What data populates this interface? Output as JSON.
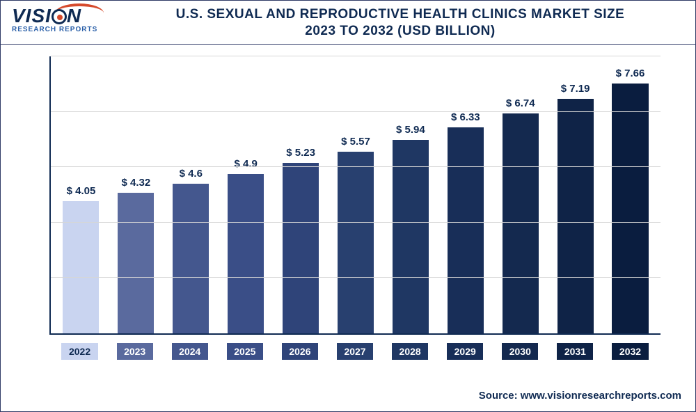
{
  "logo": {
    "main": "VISI",
    "main2": "N",
    "sub": "RESEARCH REPORTS"
  },
  "title_line1": "U.S. SEXUAL AND REPRODUCTIVE HEALTH CLINICS MARKET SIZE",
  "title_line2": "2023 TO 2032 (USD BILLION)",
  "source": "Source: www.visionresearchreports.com",
  "chart": {
    "type": "bar",
    "ylim": [
      0,
      8.5
    ],
    "gridlines": [
      1.7,
      3.4,
      5.1,
      6.8,
      8.5
    ],
    "background_color": "#ffffff",
    "grid_color": "#d6d6d6",
    "axis_color": "#0f2a52",
    "label_color": "#0f2a52",
    "label_fontsize": 15,
    "xlabel_fontsize": 14,
    "xlabel_color": "#ffffff",
    "bar_width_pct": 66,
    "currency_prefix": "$ ",
    "years": [
      "2022",
      "2023",
      "2024",
      "2025",
      "2026",
      "2027",
      "2028",
      "2029",
      "2030",
      "2031",
      "2032"
    ],
    "values": [
      4.05,
      4.32,
      4.6,
      4.9,
      5.23,
      5.57,
      5.94,
      6.33,
      6.74,
      7.19,
      7.66
    ],
    "value_labels": [
      "4.05",
      "4.32",
      "4.6",
      "4.9",
      "5.23",
      "5.57",
      "5.94",
      "6.33",
      "6.74",
      "7.19",
      "7.66"
    ],
    "bar_colors": [
      "#c9d4f0",
      "#5a6a9e",
      "#44578e",
      "#3a4e87",
      "#2f4479",
      "#28406f",
      "#1f3763",
      "#182e58",
      "#14294f",
      "#0f2347",
      "#0a1d3f"
    ],
    "xbox_colors": [
      "#c9d4f0",
      "#5a6a9e",
      "#44578e",
      "#3a4e87",
      "#2f4479",
      "#28406f",
      "#1f3763",
      "#182e58",
      "#14294f",
      "#0f2347",
      "#0a1d3f"
    ],
    "xbox_text_colors": [
      "#0f2a52",
      "#ffffff",
      "#ffffff",
      "#ffffff",
      "#ffffff",
      "#ffffff",
      "#ffffff",
      "#ffffff",
      "#ffffff",
      "#ffffff",
      "#ffffff"
    ]
  }
}
